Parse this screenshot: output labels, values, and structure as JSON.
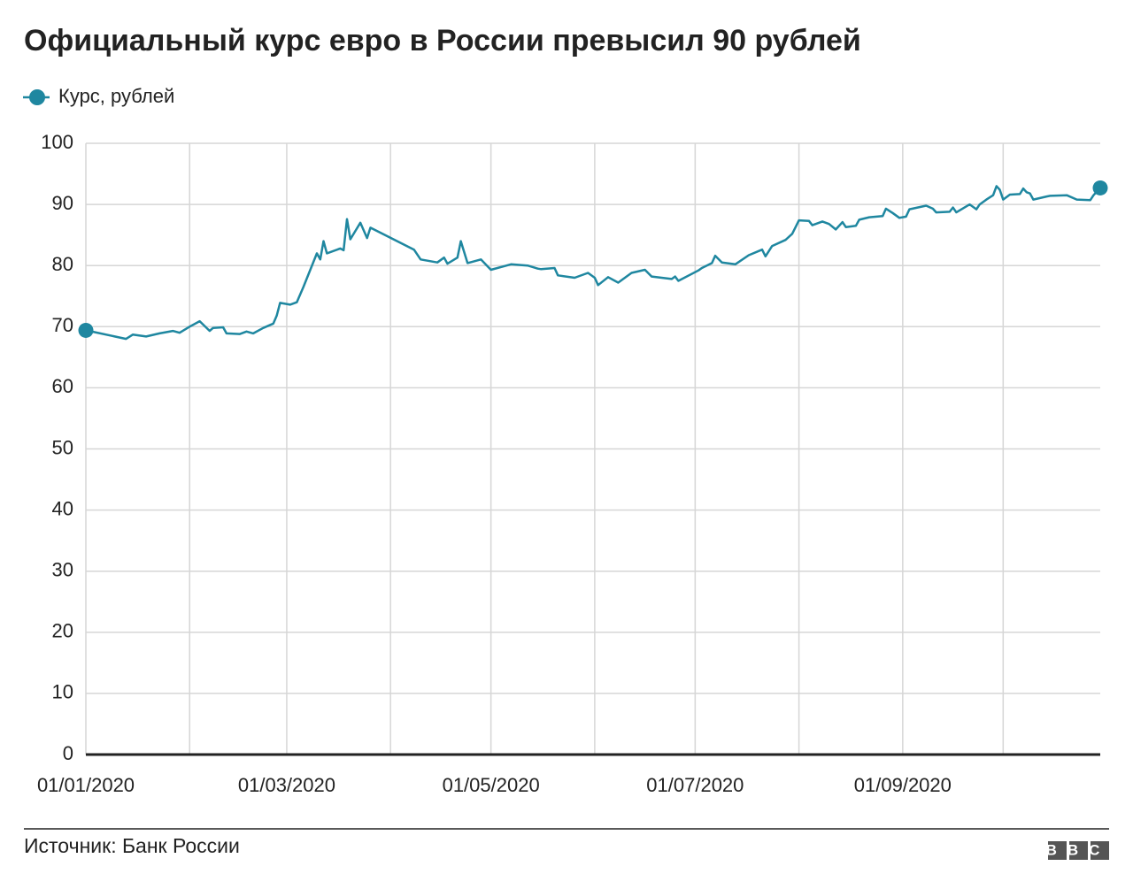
{
  "chart_data": {
    "type": "line",
    "title": "Официальный курс евро в России превысил 90 рублей",
    "source": "Источник: Банк России",
    "logo": "BBC",
    "x": [
      "2020-01-01",
      "2020-01-13",
      "2020-01-15",
      "2020-01-19",
      "2020-01-23",
      "2020-01-27",
      "2020-01-29",
      "2020-02-01",
      "2020-02-04",
      "2020-02-07",
      "2020-02-08",
      "2020-02-11",
      "2020-02-12",
      "2020-02-16",
      "2020-02-18",
      "2020-02-20",
      "2020-02-23",
      "2020-02-26",
      "2020-02-27",
      "2020-02-28",
      "2020-03-02",
      "2020-03-04",
      "2020-03-06",
      "2020-03-10",
      "2020-03-11",
      "2020-03-12",
      "2020-03-13",
      "2020-03-17",
      "2020-03-18",
      "2020-03-19",
      "2020-03-20",
      "2020-03-23",
      "2020-03-25",
      "2020-03-26",
      "2020-04-08",
      "2020-04-10",
      "2020-04-15",
      "2020-04-17",
      "2020-04-18",
      "2020-04-21",
      "2020-04-22",
      "2020-04-24",
      "2020-04-28",
      "2020-05-01",
      "2020-05-07",
      "2020-05-12",
      "2020-05-15",
      "2020-05-16",
      "2020-05-20",
      "2020-05-21",
      "2020-05-26",
      "2020-05-30",
      "2020-06-01",
      "2020-06-02",
      "2020-06-05",
      "2020-06-08",
      "2020-06-12",
      "2020-06-16",
      "2020-06-18",
      "2020-06-24",
      "2020-06-25",
      "2020-06-26",
      "2020-07-02",
      "2020-07-03",
      "2020-07-06",
      "2020-07-07",
      "2020-07-09",
      "2020-07-13",
      "2020-07-17",
      "2020-07-21",
      "2020-07-22",
      "2020-07-24",
      "2020-07-28",
      "2020-07-30",
      "2020-08-01",
      "2020-08-04",
      "2020-08-05",
      "2020-08-08",
      "2020-08-10",
      "2020-08-12",
      "2020-08-14",
      "2020-08-15",
      "2020-08-18",
      "2020-08-19",
      "2020-08-22",
      "2020-08-26",
      "2020-08-27",
      "2020-08-29",
      "2020-08-31",
      "2020-09-02",
      "2020-09-03",
      "2020-09-08",
      "2020-09-10",
      "2020-09-11",
      "2020-09-15",
      "2020-09-16",
      "2020-09-17",
      "2020-09-21",
      "2020-09-23",
      "2020-09-24",
      "2020-09-26",
      "2020-09-28",
      "2020-09-29",
      "2020-09-30",
      "2020-10-01",
      "2020-10-03",
      "2020-10-06",
      "2020-10-07",
      "2020-10-08",
      "2020-10-09",
      "2020-10-10",
      "2020-10-14",
      "2020-10-15",
      "2020-10-20",
      "2020-10-23",
      "2020-10-27",
      "2020-10-28",
      "2020-10-30"
    ],
    "series": [
      {
        "name": "Курс, рублей",
        "color": "#1f87a0",
        "values": [
          69.4,
          68.0,
          68.7,
          68.4,
          68.9,
          69.3,
          69.0,
          70.0,
          70.9,
          69.3,
          69.8,
          69.9,
          68.9,
          68.8,
          69.2,
          68.9,
          69.8,
          70.5,
          71.8,
          73.9,
          73.6,
          74.0,
          76.5,
          82.0,
          81.0,
          84.0,
          82.0,
          82.8,
          82.5,
          87.6,
          84.3,
          87.0,
          84.5,
          86.2,
          82.6,
          81.0,
          80.5,
          81.3,
          80.3,
          81.3,
          84.0,
          80.4,
          81.0,
          79.3,
          80.2,
          80.0,
          79.5,
          79.4,
          79.6,
          78.4,
          78.0,
          78.8,
          78.0,
          76.8,
          78.1,
          77.2,
          78.8,
          79.3,
          78.2,
          77.8,
          78.2,
          77.5,
          79.2,
          79.6,
          80.4,
          81.6,
          80.5,
          80.2,
          81.7,
          82.6,
          81.5,
          83.2,
          84.2,
          85.2,
          87.4,
          87.3,
          86.6,
          87.2,
          86.8,
          85.9,
          87.1,
          86.3,
          86.5,
          87.5,
          87.9,
          88.1,
          89.3,
          88.6,
          87.8,
          88.0,
          89.2,
          89.8,
          89.3,
          88.7,
          88.8,
          89.5,
          88.7,
          90.0,
          89.2,
          90.0,
          90.8,
          91.5,
          93.0,
          92.4,
          90.8,
          91.6,
          91.7,
          92.6,
          92.0,
          91.8,
          90.8,
          91.3,
          91.4,
          91.5,
          90.8,
          90.7,
          91.5,
          92.7
        ]
      }
    ],
    "xlim": [
      "2020-01-01",
      "2020-10-30"
    ],
    "xticks": [
      {
        "value": "2020-01-01",
        "label": "01/01/2020"
      },
      {
        "value": "2020-02-01",
        "label": null
      },
      {
        "value": "2020-03-01",
        "label": "01/03/2020"
      },
      {
        "value": "2020-04-01",
        "label": null
      },
      {
        "value": "2020-05-01",
        "label": "01/05/2020"
      },
      {
        "value": "2020-06-01",
        "label": null
      },
      {
        "value": "2020-07-01",
        "label": "01/07/2020"
      },
      {
        "value": "2020-08-01",
        "label": null
      },
      {
        "value": "2020-09-01",
        "label": "01/09/2020"
      },
      {
        "value": "2020-10-01",
        "label": null
      }
    ],
    "ylim": [
      0,
      100
    ],
    "yticks": [
      0,
      10,
      20,
      30,
      40,
      50,
      60,
      70,
      80,
      90,
      100
    ],
    "grid": true
  }
}
